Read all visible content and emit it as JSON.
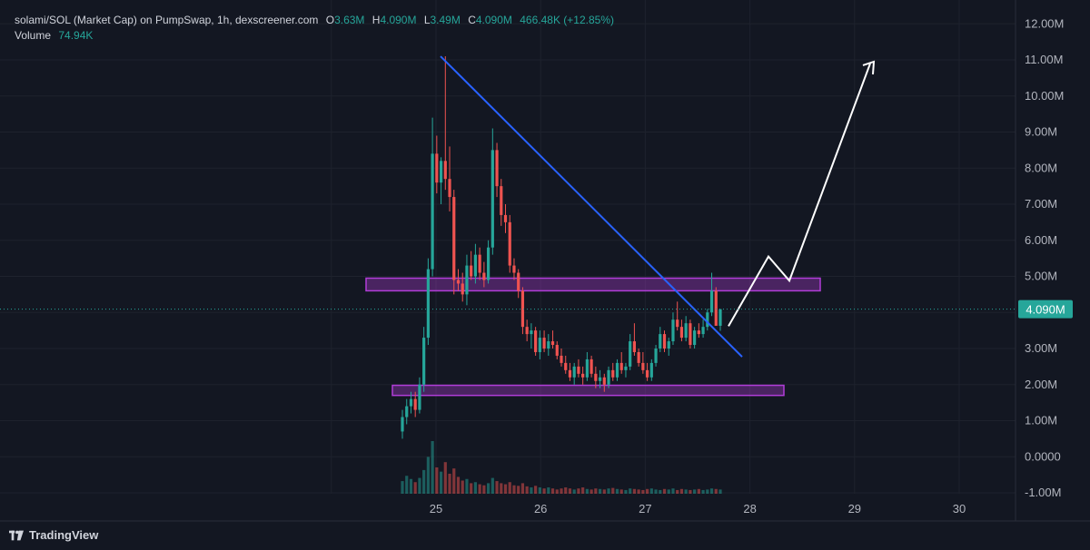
{
  "header": {
    "symbol": "solami/SOL (Market Cap) on PumpSwap, 1h, dexscreener.com",
    "open_label": "O",
    "open": "3.63M",
    "high_label": "H",
    "high": "4.090M",
    "low_label": "L",
    "low": "3.49M",
    "close_label": "C",
    "close": "4.090M",
    "change": "466.48K (+12.85%)",
    "volume_label": "Volume",
    "volume": "74.94K"
  },
  "brand": {
    "name": "TradingView"
  },
  "colors": {
    "background": "#131722",
    "grid": "#1e222d",
    "up": "#26a69a",
    "down": "#ef5350",
    "trendline": "#2962ff",
    "zone": "#b13dd8",
    "projection": "#ffffff",
    "price_label": "#26a69a"
  },
  "chart_data": {
    "type": "candlestick",
    "title": "",
    "xlabel": "",
    "ylabel": "",
    "y_ticks": [
      "12.00M",
      "11.00M",
      "10.00M",
      "9.00M",
      "8.00M",
      "7.00M",
      "6.00M",
      "5.00M",
      "3.00M",
      "2.00M",
      "1.00M",
      "0.0000",
      "-1.00M"
    ],
    "y_tick_values": [
      12,
      11,
      10,
      9,
      8,
      7,
      6,
      5,
      3,
      2,
      1,
      0,
      -1
    ],
    "x_ticks": [
      "25",
      "26",
      "27",
      "28",
      "29",
      "30"
    ],
    "x_tick_values": [
      25,
      26,
      27,
      28,
      29,
      30
    ],
    "ylim": [
      -1,
      12.5
    ],
    "xlim": [
      23.95,
      30.6
    ],
    "last_price": 4.09,
    "last_price_label": "4.090M",
    "candles": [
      {
        "o": 0.7,
        "h": 1.3,
        "l": 0.5,
        "c": 1.1
      },
      {
        "o": 1.1,
        "h": 1.6,
        "l": 0.9,
        "c": 1.4
      },
      {
        "o": 1.4,
        "h": 1.8,
        "l": 1.2,
        "c": 1.6
      },
      {
        "o": 1.6,
        "h": 1.8,
        "l": 1.1,
        "c": 1.3
      },
      {
        "o": 1.3,
        "h": 2.2,
        "l": 1.2,
        "c": 2.0
      },
      {
        "o": 2.0,
        "h": 3.6,
        "l": 1.8,
        "c": 3.3
      },
      {
        "o": 3.3,
        "h": 5.5,
        "l": 3.1,
        "c": 5.2
      },
      {
        "o": 5.2,
        "h": 9.4,
        "l": 5.0,
        "c": 8.4
      },
      {
        "o": 8.4,
        "h": 8.9,
        "l": 7.3,
        "c": 7.6
      },
      {
        "o": 7.6,
        "h": 8.3,
        "l": 7.0,
        "c": 8.2
      },
      {
        "o": 8.2,
        "h": 11.1,
        "l": 7.4,
        "c": 7.7
      },
      {
        "o": 7.7,
        "h": 8.6,
        "l": 6.8,
        "c": 7.2
      },
      {
        "o": 7.2,
        "h": 7.4,
        "l": 4.5,
        "c": 4.9
      },
      {
        "o": 4.9,
        "h": 5.2,
        "l": 4.6,
        "c": 4.8
      },
      {
        "o": 4.8,
        "h": 5.1,
        "l": 4.3,
        "c": 4.5
      },
      {
        "o": 4.5,
        "h": 5.6,
        "l": 4.2,
        "c": 5.3
      },
      {
        "o": 5.3,
        "h": 5.7,
        "l": 4.9,
        "c": 5.0
      },
      {
        "o": 5.0,
        "h": 5.9,
        "l": 4.8,
        "c": 5.6
      },
      {
        "o": 5.6,
        "h": 5.8,
        "l": 4.9,
        "c": 5.1
      },
      {
        "o": 5.1,
        "h": 5.4,
        "l": 4.7,
        "c": 4.9
      },
      {
        "o": 4.9,
        "h": 6.0,
        "l": 4.8,
        "c": 5.8
      },
      {
        "o": 5.8,
        "h": 9.1,
        "l": 5.6,
        "c": 8.5
      },
      {
        "o": 8.5,
        "h": 8.7,
        "l": 7.2,
        "c": 7.5
      },
      {
        "o": 7.5,
        "h": 7.7,
        "l": 6.4,
        "c": 6.7
      },
      {
        "o": 6.7,
        "h": 7.0,
        "l": 6.2,
        "c": 6.5
      },
      {
        "o": 6.5,
        "h": 6.7,
        "l": 5.1,
        "c": 5.3
      },
      {
        "o": 5.3,
        "h": 5.5,
        "l": 4.9,
        "c": 5.1
      },
      {
        "o": 5.1,
        "h": 5.2,
        "l": 4.4,
        "c": 4.6
      },
      {
        "o": 4.6,
        "h": 4.7,
        "l": 3.4,
        "c": 3.6
      },
      {
        "o": 3.6,
        "h": 3.8,
        "l": 3.2,
        "c": 3.4
      },
      {
        "o": 3.4,
        "h": 3.7,
        "l": 3.0,
        "c": 3.5
      },
      {
        "o": 3.5,
        "h": 3.6,
        "l": 2.8,
        "c": 2.9
      },
      {
        "o": 2.9,
        "h": 3.5,
        "l": 2.7,
        "c": 3.3
      },
      {
        "o": 3.3,
        "h": 3.5,
        "l": 2.9,
        "c": 3.0
      },
      {
        "o": 3.0,
        "h": 3.4,
        "l": 2.8,
        "c": 3.2
      },
      {
        "o": 3.2,
        "h": 3.5,
        "l": 3.0,
        "c": 3.1
      },
      {
        "o": 3.1,
        "h": 3.2,
        "l": 2.7,
        "c": 2.8
      },
      {
        "o": 2.8,
        "h": 3.0,
        "l": 2.5,
        "c": 2.6
      },
      {
        "o": 2.6,
        "h": 2.8,
        "l": 2.3,
        "c": 2.4
      },
      {
        "o": 2.4,
        "h": 2.6,
        "l": 2.1,
        "c": 2.2
      },
      {
        "o": 2.2,
        "h": 2.6,
        "l": 2.0,
        "c": 2.5
      },
      {
        "o": 2.5,
        "h": 2.7,
        "l": 2.2,
        "c": 2.3
      },
      {
        "o": 2.3,
        "h": 2.5,
        "l": 2.0,
        "c": 2.2
      },
      {
        "o": 2.2,
        "h": 2.9,
        "l": 2.1,
        "c": 2.7
      },
      {
        "o": 2.7,
        "h": 2.8,
        "l": 2.2,
        "c": 2.3
      },
      {
        "o": 2.3,
        "h": 2.5,
        "l": 1.9,
        "c": 2.1
      },
      {
        "o": 2.1,
        "h": 2.4,
        "l": 1.9,
        "c": 2.2
      },
      {
        "o": 2.2,
        "h": 2.3,
        "l": 1.8,
        "c": 2.0
      },
      {
        "o": 2.0,
        "h": 2.5,
        "l": 1.9,
        "c": 2.4
      },
      {
        "o": 2.4,
        "h": 2.6,
        "l": 2.1,
        "c": 2.2
      },
      {
        "o": 2.2,
        "h": 2.7,
        "l": 2.1,
        "c": 2.6
      },
      {
        "o": 2.6,
        "h": 2.9,
        "l": 2.3,
        "c": 2.4
      },
      {
        "o": 2.4,
        "h": 2.6,
        "l": 2.2,
        "c": 2.5
      },
      {
        "o": 2.5,
        "h": 3.4,
        "l": 2.4,
        "c": 3.2
      },
      {
        "o": 3.2,
        "h": 3.7,
        "l": 2.8,
        "c": 2.9
      },
      {
        "o": 2.9,
        "h": 3.0,
        "l": 2.5,
        "c": 2.6
      },
      {
        "o": 2.6,
        "h": 2.9,
        "l": 2.3,
        "c": 2.4
      },
      {
        "o": 2.4,
        "h": 2.6,
        "l": 2.1,
        "c": 2.2
      },
      {
        "o": 2.2,
        "h": 2.7,
        "l": 2.1,
        "c": 2.6
      },
      {
        "o": 2.6,
        "h": 3.1,
        "l": 2.5,
        "c": 3.0
      },
      {
        "o": 3.0,
        "h": 3.6,
        "l": 2.9,
        "c": 3.4
      },
      {
        "o": 3.4,
        "h": 3.5,
        "l": 2.9,
        "c": 3.0
      },
      {
        "o": 3.0,
        "h": 3.3,
        "l": 2.8,
        "c": 3.2
      },
      {
        "o": 3.2,
        "h": 4.0,
        "l": 3.1,
        "c": 3.8
      },
      {
        "o": 3.8,
        "h": 4.3,
        "l": 3.5,
        "c": 3.6
      },
      {
        "o": 3.6,
        "h": 3.8,
        "l": 3.2,
        "c": 3.3
      },
      {
        "o": 3.3,
        "h": 3.9,
        "l": 3.2,
        "c": 3.7
      },
      {
        "o": 3.7,
        "h": 3.8,
        "l": 3.0,
        "c": 3.1
      },
      {
        "o": 3.1,
        "h": 3.6,
        "l": 3.0,
        "c": 3.5
      },
      {
        "o": 3.5,
        "h": 3.7,
        "l": 3.3,
        "c": 3.4
      },
      {
        "o": 3.4,
        "h": 3.8,
        "l": 3.3,
        "c": 3.6
      },
      {
        "o": 3.6,
        "h": 4.1,
        "l": 3.5,
        "c": 4.0
      },
      {
        "o": 4.0,
        "h": 5.1,
        "l": 3.9,
        "c": 4.6
      },
      {
        "o": 4.6,
        "h": 4.7,
        "l": 3.7,
        "c": 3.63
      },
      {
        "o": 3.63,
        "h": 4.09,
        "l": 3.49,
        "c": 4.09
      }
    ],
    "volume": [
      0.24,
      0.34,
      0.28,
      0.22,
      0.3,
      0.45,
      0.7,
      1.0,
      0.5,
      0.42,
      0.6,
      0.38,
      0.48,
      0.32,
      0.25,
      0.28,
      0.2,
      0.22,
      0.18,
      0.16,
      0.2,
      0.3,
      0.24,
      0.2,
      0.18,
      0.22,
      0.16,
      0.15,
      0.2,
      0.14,
      0.12,
      0.15,
      0.12,
      0.1,
      0.12,
      0.1,
      0.08,
      0.1,
      0.12,
      0.1,
      0.08,
      0.1,
      0.12,
      0.09,
      0.08,
      0.1,
      0.09,
      0.08,
      0.1,
      0.11,
      0.09,
      0.08,
      0.07,
      0.1,
      0.09,
      0.08,
      0.07,
      0.09,
      0.1,
      0.08,
      0.07,
      0.09,
      0.08,
      0.1,
      0.07,
      0.09,
      0.08,
      0.07,
      0.08,
      0.09,
      0.07,
      0.08,
      0.1,
      0.09,
      0.08
    ]
  }
}
